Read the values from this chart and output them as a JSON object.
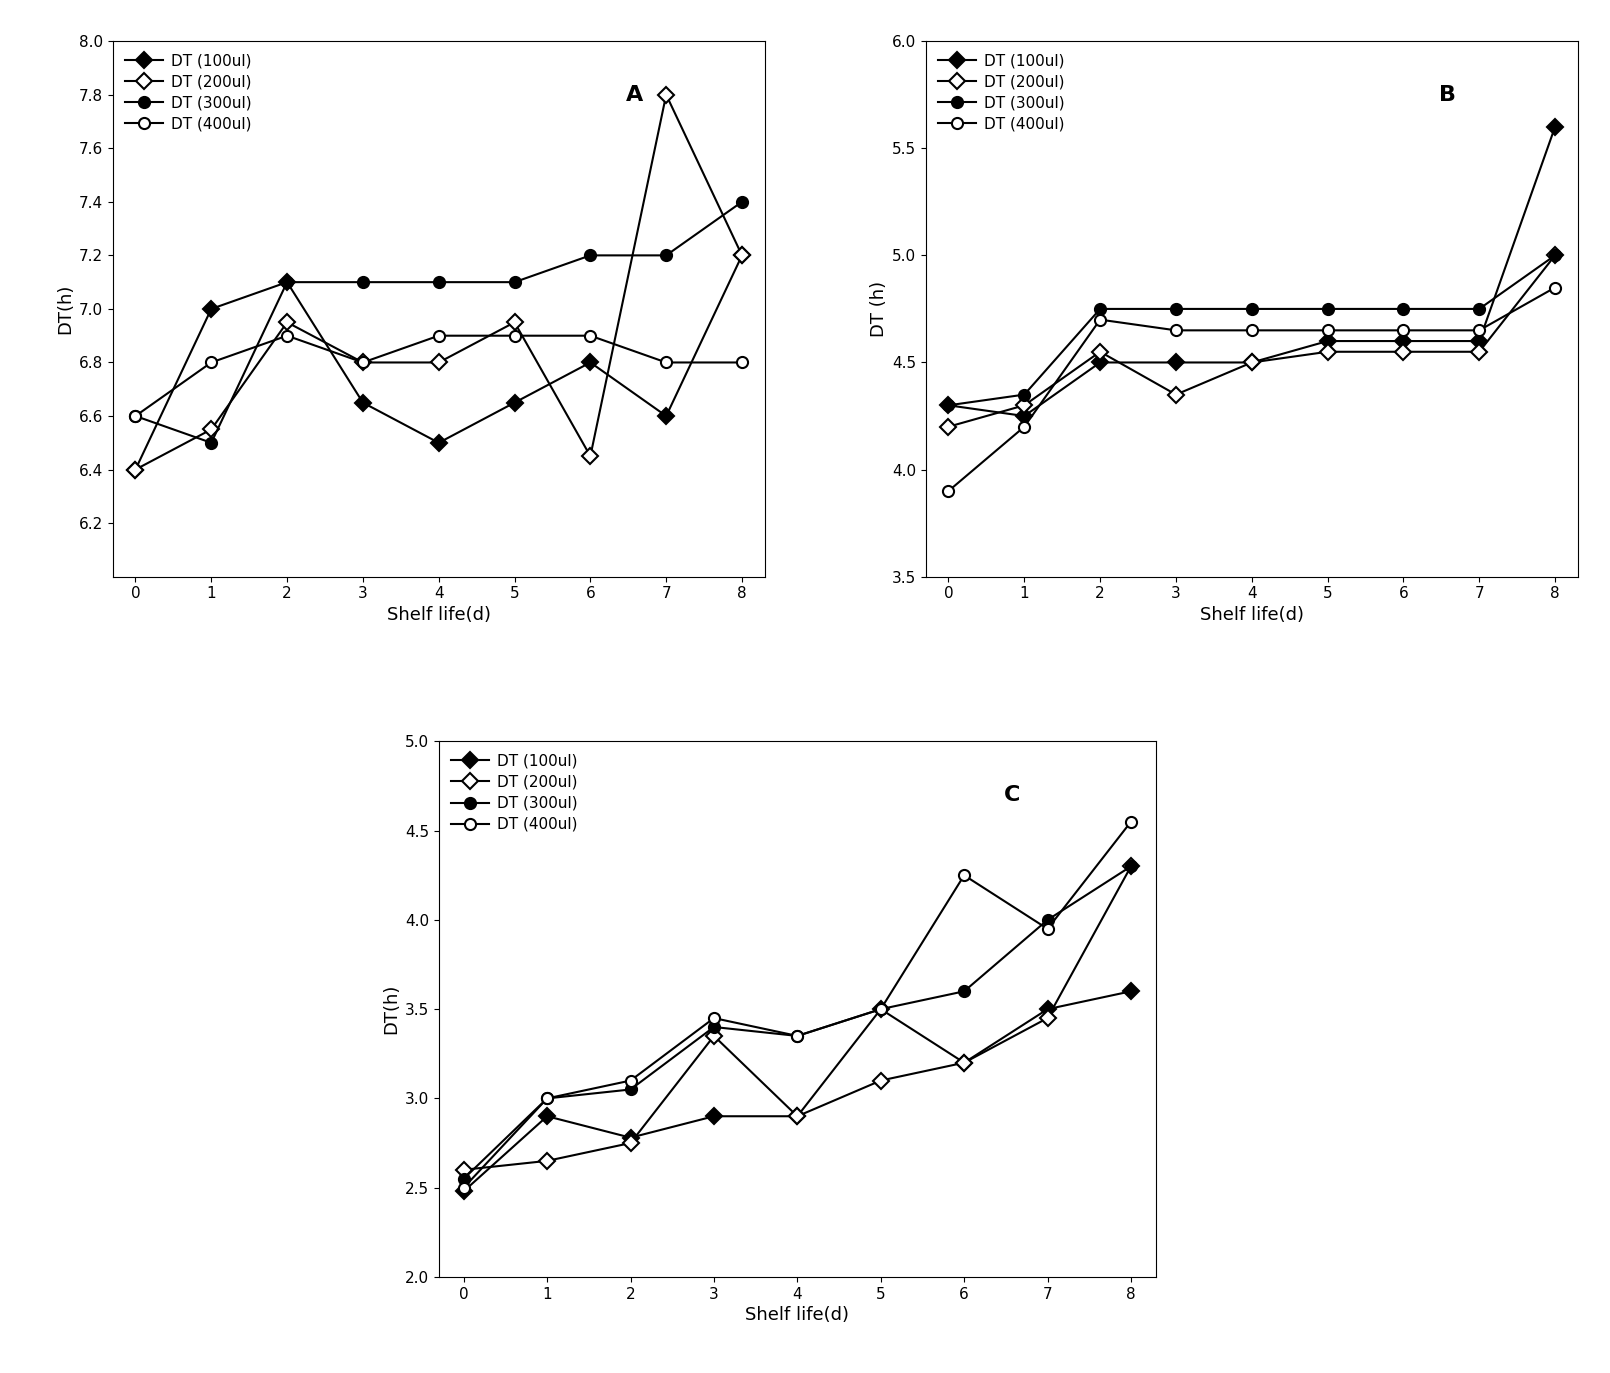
{
  "x": [
    0,
    1,
    2,
    3,
    4,
    5,
    6,
    7,
    8
  ],
  "A": {
    "label": "A",
    "ylim": [
      6.0,
      8.0
    ],
    "yticks": [
      6.2,
      6.4,
      6.6,
      6.8,
      7.0,
      7.2,
      7.4,
      7.6,
      7.8,
      8.0
    ],
    "ylabel": "DT(h)",
    "xlabel": "Shelf life(d)",
    "series": {
      "DT (100ul)": {
        "marker": "D",
        "filled": true,
        "data": [
          6.4,
          7.0,
          7.1,
          6.65,
          6.5,
          6.65,
          6.8,
          6.6,
          7.2
        ]
      },
      "DT (200ul)": {
        "marker": "D",
        "filled": false,
        "data": [
          6.4,
          6.55,
          6.95,
          6.8,
          6.8,
          6.95,
          6.45,
          7.8,
          7.2
        ]
      },
      "DT (300ul)": {
        "marker": "o",
        "filled": true,
        "data": [
          6.6,
          6.5,
          7.1,
          7.1,
          7.1,
          7.1,
          7.2,
          7.2,
          7.4
        ]
      },
      "DT (400ul)": {
        "marker": "o",
        "filled": false,
        "data": [
          6.6,
          6.8,
          6.9,
          6.8,
          6.9,
          6.9,
          6.9,
          6.8,
          6.8
        ]
      }
    }
  },
  "B": {
    "label": "B",
    "ylim": [
      3.5,
      6.0
    ],
    "yticks": [
      3.5,
      4.0,
      4.5,
      5.0,
      5.5,
      6.0
    ],
    "ylabel": "DT (h)",
    "xlabel": "Shelf life(d)",
    "series": {
      "DT (100ul)": {
        "marker": "D",
        "filled": true,
        "data": [
          4.3,
          4.25,
          4.5,
          4.5,
          4.5,
          4.6,
          4.6,
          4.6,
          5.6
        ]
      },
      "DT (200ul)": {
        "marker": "D",
        "filled": false,
        "data": [
          4.2,
          4.3,
          4.55,
          4.35,
          4.5,
          4.55,
          4.55,
          4.55,
          5.0
        ]
      },
      "DT (300ul)": {
        "marker": "o",
        "filled": true,
        "data": [
          4.3,
          4.35,
          4.75,
          4.75,
          4.75,
          4.75,
          4.75,
          4.75,
          5.0
        ]
      },
      "DT (400ul)": {
        "marker": "o",
        "filled": false,
        "data": [
          3.9,
          4.2,
          4.7,
          4.65,
          4.65,
          4.65,
          4.65,
          4.65,
          4.85
        ]
      }
    }
  },
  "C": {
    "label": "C",
    "ylim": [
      2.0,
      5.0
    ],
    "yticks": [
      2.0,
      2.5,
      3.0,
      3.5,
      4.0,
      4.5,
      5.0
    ],
    "ylabel": "DT(h)",
    "xlabel": "Shelf life(d)",
    "series": {
      "DT (100ul)": {
        "marker": "D",
        "filled": true,
        "data": [
          2.48,
          2.9,
          2.78,
          2.9,
          2.9,
          3.5,
          3.2,
          3.5,
          3.6
        ]
      },
      "DT (200ul)": {
        "marker": "D",
        "filled": false,
        "data": [
          2.6,
          2.65,
          2.75,
          3.35,
          2.9,
          3.1,
          3.2,
          3.45,
          4.3
        ]
      },
      "DT (300ul)": {
        "marker": "o",
        "filled": true,
        "data": [
          2.55,
          3.0,
          3.05,
          3.4,
          3.35,
          3.5,
          3.6,
          4.0,
          4.3
        ]
      },
      "DT (400ul)": {
        "marker": "o",
        "filled": false,
        "data": [
          2.5,
          3.0,
          3.1,
          3.45,
          3.35,
          3.5,
          4.25,
          3.95,
          4.55
        ]
      }
    }
  },
  "line_color": "#000000",
  "marker_size": 8,
  "line_width": 1.5,
  "legend_fontsize": 11,
  "axis_label_fontsize": 13,
  "tick_label_fontsize": 11,
  "panel_label_fontsize": 16,
  "background_color": "#ffffff"
}
